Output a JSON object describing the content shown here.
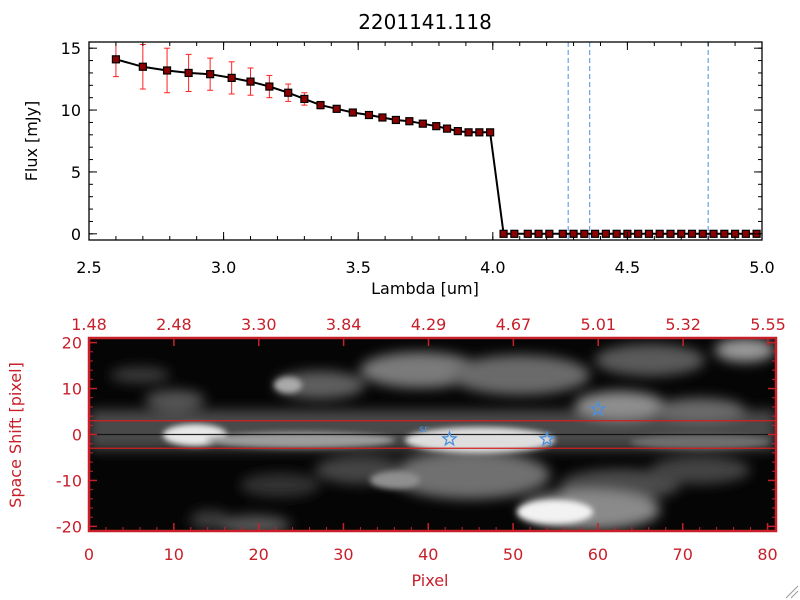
{
  "chart_data": [
    {
      "type": "line",
      "title": "2201141.118",
      "xlabel": "Lambda [um]",
      "ylabel": "Flux [mJy]",
      "xlim": [
        2.5,
        5.0
      ],
      "ylim": [
        -0.5,
        15.5
      ],
      "xticks": [
        "2.5",
        "3.0",
        "3.5",
        "4.0",
        "4.5",
        "5.0"
      ],
      "yticks": [
        "0",
        "5",
        "10",
        "15"
      ],
      "series": [
        {
          "x": [
            2.6,
            2.7,
            2.79,
            2.87,
            2.95,
            3.03,
            3.1,
            3.17,
            3.24,
            3.3,
            3.36,
            3.42,
            3.48,
            3.54,
            3.59,
            3.64,
            3.69,
            3.74,
            3.79,
            3.83,
            3.87,
            3.91,
            3.95,
            3.99,
            4.04,
            4.08,
            4.13,
            4.17,
            4.21,
            4.26,
            4.3,
            4.34,
            4.38,
            4.42,
            4.46,
            4.5,
            4.54,
            4.58,
            4.62,
            4.66,
            4.7,
            4.74,
            4.78,
            4.82,
            4.86,
            4.9,
            4.94,
            4.98
          ],
          "y": [
            14.1,
            13.5,
            13.2,
            13.0,
            12.9,
            12.6,
            12.3,
            11.9,
            11.4,
            10.9,
            10.4,
            10.1,
            9.8,
            9.6,
            9.4,
            9.2,
            9.1,
            8.9,
            8.7,
            8.5,
            8.3,
            8.2,
            8.2,
            8.2,
            0,
            0,
            0,
            0,
            0,
            0,
            0,
            0,
            0,
            0,
            0,
            0,
            0,
            0,
            0,
            0,
            0,
            0,
            0,
            0,
            0,
            0,
            0,
            0
          ],
          "yerr": [
            1.4,
            1.8,
            1.8,
            1.5,
            1.3,
            1.3,
            1.1,
            0.9,
            0.7,
            0.5,
            0.3,
            0.2,
            0.2,
            0.1,
            0.1,
            0.1,
            0.1,
            0.1,
            0.1,
            0.1,
            0.1,
            0.1,
            0.1,
            0.1,
            0,
            0,
            0,
            0,
            0,
            0,
            0,
            0,
            0,
            0,
            0,
            0,
            0,
            0,
            0,
            0,
            0,
            0,
            0,
            0,
            0,
            0,
            0,
            0
          ]
        }
      ],
      "vlines": [
        4.28,
        4.36,
        4.8
      ],
      "colors": {
        "line": "#000000",
        "marker": "#8b0000",
        "errbar": "#ff2020",
        "vline": "#4a8fe0",
        "zero": "#ff3030"
      }
    },
    {
      "type": "heatmap",
      "xlabel": "Pixel",
      "ylabel": "Space Shift [pixel]",
      "xlim": [
        0,
        81
      ],
      "ylim": [
        -21,
        21
      ],
      "xticks": [
        "0",
        "10",
        "20",
        "30",
        "40",
        "50",
        "60",
        "70",
        "80"
      ],
      "yticks": [
        "-20",
        "-10",
        "0",
        "10",
        "20"
      ],
      "top_axis_ticks": [
        "1.48",
        "2.48",
        "3.30",
        "3.84",
        "4.29",
        "4.67",
        "5.01",
        "5.32",
        "5.55"
      ],
      "hlines": [
        3,
        -3
      ],
      "center_line": 0,
      "stars": [
        {
          "x": 42.5,
          "y": -1
        },
        {
          "x": 54.0,
          "y": -1
        },
        {
          "x": 60.0,
          "y": 5.5
        }
      ],
      "small_mark_label": "sr",
      "colors": {
        "axis": "#c8202a",
        "star": "#4a8fe0",
        "box_line": "#d02020"
      }
    }
  ]
}
